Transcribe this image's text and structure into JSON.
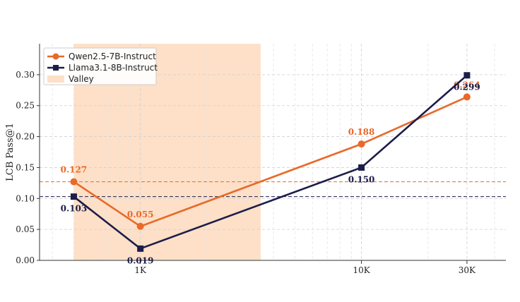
{
  "chart_data": {
    "type": "line",
    "ylabel": "LCB Pass@1",
    "x_scale": "log",
    "xlim": [
      350,
      45000
    ],
    "ylim": [
      0,
      0.35
    ],
    "x_ticks": [
      {
        "value": 1000,
        "label": "1K"
      },
      {
        "value": 10000,
        "label": "10K"
      },
      {
        "value": 30000,
        "label": "30K"
      }
    ],
    "y_ticks": [
      {
        "value": 0.0,
        "label": "0.00"
      },
      {
        "value": 0.05,
        "label": "0.05"
      },
      {
        "value": 0.1,
        "label": "0.10"
      },
      {
        "value": 0.15,
        "label": "0.15"
      },
      {
        "value": 0.2,
        "label": "0.20"
      },
      {
        "value": 0.25,
        "label": "0.25"
      },
      {
        "value": 0.3,
        "label": "0.30"
      }
    ],
    "grid": true,
    "legend_position": "top-left",
    "valley": {
      "name": "Valley",
      "x_range": [
        500,
        3500
      ],
      "color": "#fde0c7"
    },
    "series": [
      {
        "name": "Qwen2.5-7B-Instruct",
        "color": "#e8692a",
        "marker": "circle",
        "label_position": "above",
        "x": [
          500,
          1000,
          10000,
          30000
        ],
        "values": [
          0.127,
          0.055,
          0.188,
          0.264
        ],
        "labels": [
          "0.127",
          "0.055",
          "0.188",
          "0.264"
        ],
        "baseline": 0.127
      },
      {
        "name": "Llama3.1-8B-Instruct",
        "color": "#1c1d4a",
        "marker": "square",
        "label_position": "below",
        "x": [
          500,
          1000,
          10000,
          30000
        ],
        "values": [
          0.103,
          0.019,
          0.15,
          0.299
        ],
        "labels": [
          "0.103",
          "0.019",
          "0.150",
          "0.299"
        ],
        "baseline": 0.103
      }
    ]
  }
}
